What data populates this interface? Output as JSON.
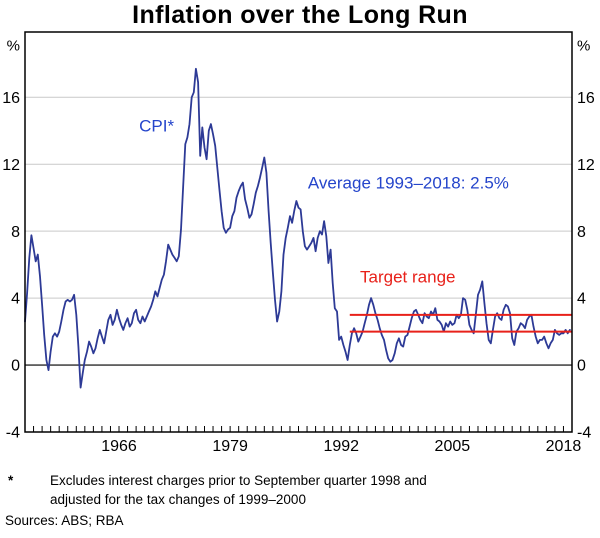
{
  "title": "Inflation over the Long Run",
  "footnote": {
    "marker": "*",
    "lines": [
      "Excludes interest charges prior to September quarter 1998 and",
      "adjusted for the tax changes of 1999–2000"
    ]
  },
  "sources": "Sources: ABS; RBA",
  "colors": {
    "line_blue": "#2d3a96",
    "annotation_blue": "#2545cb",
    "target_red": "#e8211a",
    "grid": "#c9c9c9",
    "zero_line": "#2b2b2b",
    "axis": "#000000"
  },
  "chart_data": {
    "type": "line",
    "title": "Inflation over the Long Run",
    "unit_label": "%",
    "xlabel": "",
    "ylabel": "%",
    "grid": true,
    "legend_position": "none",
    "x_domain": [
      1955,
      2019
    ],
    "y_domain": [
      -4,
      19.9
    ],
    "yticks": [
      -4,
      0,
      4,
      8,
      12,
      16
    ],
    "grid_values": [
      4,
      8,
      12,
      16
    ],
    "xticks": [
      1966,
      1979,
      1992,
      2005,
      2018
    ],
    "minor_xticks": {
      "start": 1956,
      "end": 2018,
      "step": 1
    },
    "target_range": {
      "label": "Target range",
      "low": 2,
      "high": 3,
      "start_year": 1993,
      "color": "#e8211a"
    },
    "annotations": [
      {
        "id": "cpi-label",
        "text": "CPI*",
        "x": 1970.4,
        "y": 14.3,
        "anchor": "middle",
        "color": "#2545cb"
      },
      {
        "id": "average-label",
        "text": "Average 1993–2018: 2.5%",
        "x": 1988.1,
        "y": 10.9,
        "anchor": "start",
        "color": "#2545cb"
      },
      {
        "id": "target-range-label",
        "text": "Target range",
        "x": 1994.2,
        "y": 5.3,
        "anchor": "start",
        "color": "#e8211a"
      }
    ],
    "series": [
      {
        "name": "CPI*",
        "color": "#2d3a96",
        "start_year": 1955.0,
        "interval_years": 0.25,
        "values": [
          2.6,
          4.3,
          6.4,
          7.75,
          7.0,
          6.2,
          6.6,
          5.3,
          3.6,
          1.8,
          0.3,
          -0.3,
          0.8,
          1.7,
          1.9,
          1.7,
          2.0,
          2.6,
          3.3,
          3.8,
          3.9,
          3.8,
          3.9,
          4.2,
          3.0,
          1.1,
          -1.35,
          -0.5,
          0.3,
          0.8,
          1.4,
          1.1,
          0.7,
          1.0,
          1.6,
          2.1,
          1.7,
          1.3,
          2.0,
          2.7,
          3.0,
          2.4,
          2.7,
          3.3,
          2.8,
          2.4,
          2.1,
          2.5,
          2.8,
          2.3,
          2.5,
          3.1,
          3.3,
          2.7,
          2.5,
          2.9,
          2.6,
          2.9,
          3.2,
          3.5,
          3.9,
          4.4,
          4.1,
          4.6,
          5.1,
          5.4,
          6.2,
          7.2,
          6.9,
          6.6,
          6.4,
          6.2,
          6.5,
          8.1,
          10.6,
          13.2,
          13.6,
          14.4,
          16.0,
          16.3,
          17.7,
          16.9,
          12.5,
          14.2,
          13.0,
          12.3,
          14.0,
          14.4,
          13.8,
          13.1,
          11.8,
          10.5,
          9.2,
          8.2,
          7.9,
          8.1,
          8.2,
          8.9,
          9.2,
          10.0,
          10.4,
          10.7,
          10.9,
          9.9,
          9.4,
          8.8,
          9.0,
          9.6,
          10.3,
          10.7,
          11.2,
          11.8,
          12.4,
          11.5,
          9.2,
          7.3,
          5.5,
          3.9,
          2.6,
          3.2,
          4.4,
          6.6,
          7.6,
          8.2,
          8.9,
          8.5,
          9.2,
          9.8,
          9.4,
          9.3,
          8.0,
          7.1,
          6.9,
          7.1,
          7.3,
          7.6,
          6.8,
          7.6,
          8.0,
          7.8,
          8.6,
          7.7,
          6.1,
          6.9,
          4.9,
          3.4,
          3.2,
          1.5,
          1.7,
          1.2,
          0.8,
          0.3,
          1.2,
          1.9,
          2.2,
          1.9,
          1.4,
          1.7,
          2.0,
          2.5,
          3.0,
          3.6,
          4.0,
          3.6,
          3.1,
          2.7,
          2.2,
          1.8,
          1.5,
          0.9,
          0.4,
          0.2,
          0.3,
          0.7,
          1.3,
          1.6,
          1.2,
          1.1,
          1.7,
          1.8,
          2.3,
          2.8,
          3.2,
          3.3,
          3.0,
          2.7,
          2.5,
          3.1,
          2.9,
          2.8,
          3.2,
          3.0,
          3.4,
          2.7,
          2.6,
          2.4,
          2.0,
          2.5,
          2.3,
          2.6,
          2.4,
          2.5,
          3.0,
          2.8,
          3.0,
          4.0,
          3.9,
          3.3,
          2.4,
          2.1,
          1.9,
          3.0,
          4.2,
          4.5,
          5.0,
          3.7,
          2.5,
          1.5,
          1.3,
          2.1,
          2.9,
          3.1,
          2.8,
          2.7,
          3.3,
          3.6,
          3.5,
          3.1,
          1.6,
          1.2,
          2.0,
          2.2,
          2.5,
          2.4,
          2.2,
          2.7,
          2.9,
          3.0,
          2.3,
          1.7,
          1.3,
          1.5,
          1.5,
          1.7,
          1.3,
          1.0,
          1.3,
          1.5,
          2.1,
          1.9,
          1.8,
          1.9,
          1.9,
          2.1,
          1.9,
          2.1
        ]
      }
    ]
  }
}
